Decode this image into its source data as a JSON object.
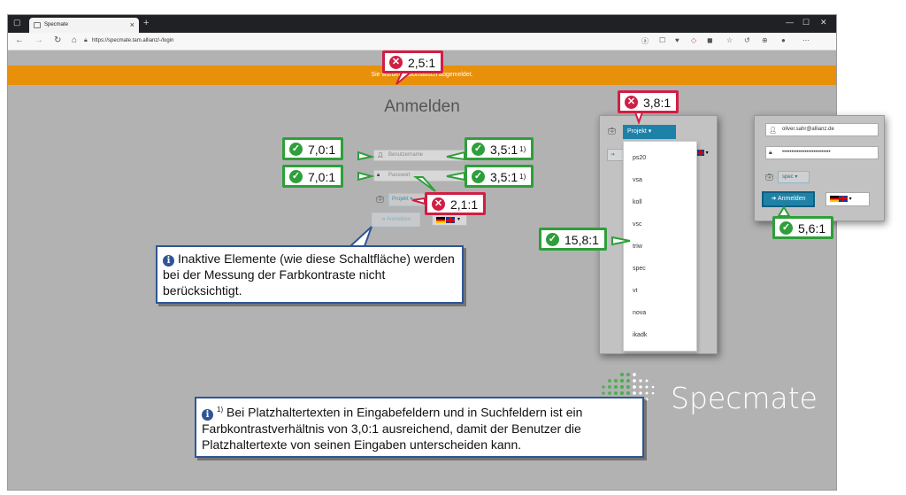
{
  "browser": {
    "tab_title": "Specmate",
    "tab_close": "×",
    "new_tab": "+",
    "url": "https://specmate.tam.allianz/-/login",
    "window_controls": [
      "—",
      "☐",
      "✕"
    ]
  },
  "notification": "Sie wurden automatisch abgemeldet.",
  "login": {
    "heading": "Anmelden",
    "username_placeholder": "Benutzername",
    "password_placeholder": "Passwort",
    "project_label": "Projekt",
    "login_button": "Anmelden",
    "caret": "▾"
  },
  "dropdown": {
    "button_label": "Projekt",
    "items": [
      "ps20",
      "vsa",
      "koll",
      "vsc",
      "triw",
      "spec",
      "vt",
      "nova",
      "ikadk"
    ]
  },
  "active_panel": {
    "username_value": "oliver.sahr@allianz.de",
    "password_value": "••••••••••••••••••••••••••",
    "project_value": "spec",
    "login_button": "Anmelden"
  },
  "logo_text": "Specmate",
  "badges": {
    "notify": "2,5:1",
    "dropdown_button": "3,8:1",
    "username_icon": "7,0:1",
    "username_placeholder": "3,5:1",
    "password_icon": "7,0:1",
    "password_placeholder": "3,5:1",
    "project_button": "2,1:1",
    "dropdown_item": "15,8:1",
    "active_login": "5,6:1",
    "footnote_ref": "1)"
  },
  "info": {
    "inactive_note": "Inaktive Elemente (wie diese Schaltfläche) werden bei der Messung der Farbkontraste nicht berücksichtigt.",
    "footnote_ref": "1)",
    "placeholder_note": "Bei Platzhaltertexten in Eingabefeldern und in Suchfeldern ist ein Farbkontrastverhältnis von 3,0:1 ausreichend, damit der Benutzer die Platzhaltertexte von seinen Eingaben unterscheiden kann."
  },
  "colors": {
    "notification_bar": "#e8900a",
    "primary_button": "#1e82a8",
    "badge_fail": "#d01e44",
    "badge_pass": "#2e9f3a",
    "info_border": "#2f5597",
    "logo_green": "#4caf50"
  },
  "icons": {
    "user": "user-icon",
    "lock": "lock-icon",
    "briefcase": "briefcase-icon",
    "sign_in": "sign-in-icon",
    "fail": "cross-circle-icon",
    "pass": "check-circle-icon",
    "info": "info-circle-icon"
  }
}
